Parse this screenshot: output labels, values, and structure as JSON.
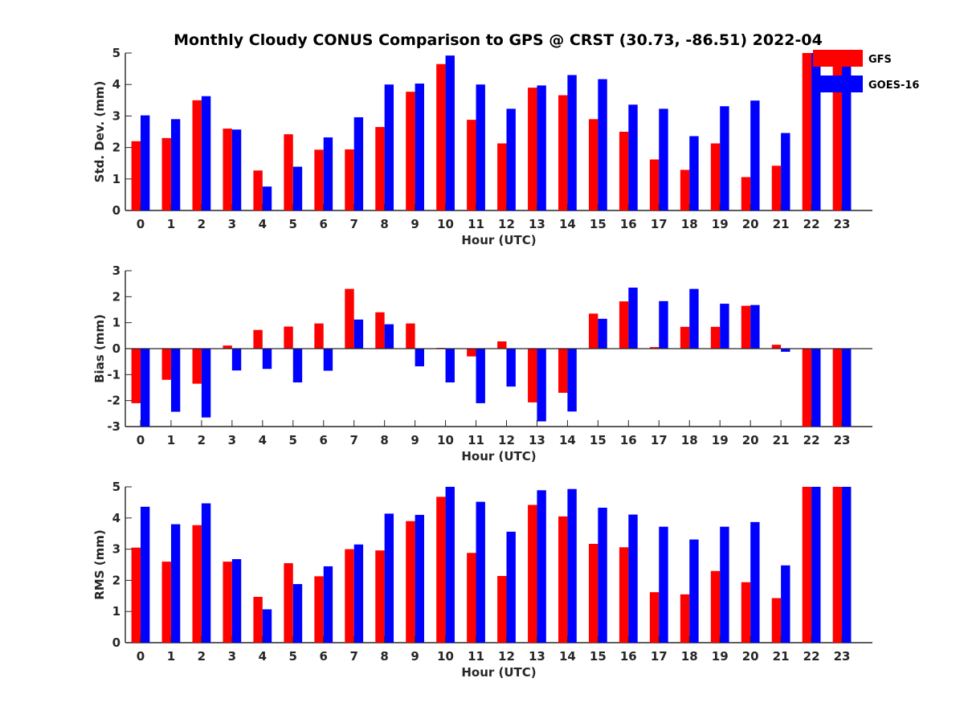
{
  "title": "Monthly Cloudy CONUS Comparison to GPS @ CRST (30.73, -86.51) 2022-04",
  "legend": {
    "items": [
      {
        "label": "GFS",
        "color": "#ff0000"
      },
      {
        "label": "GOES-16",
        "color": "#0000ff"
      }
    ],
    "placement": "top-right"
  },
  "chart_data": [
    {
      "type": "bar",
      "xlabel": "Hour (UTC)",
      "ylabel": "Std. Dev. (mm)",
      "ylim": [
        0,
        5
      ],
      "yticks": [
        0,
        1,
        2,
        3,
        4,
        5
      ],
      "grid": false,
      "categories": [
        "0",
        "1",
        "2",
        "3",
        "4",
        "5",
        "6",
        "7",
        "8",
        "9",
        "10",
        "11",
        "12",
        "13",
        "14",
        "15",
        "16",
        "17",
        "18",
        "19",
        "20",
        "21",
        "22",
        "23"
      ],
      "series": [
        {
          "name": "GFS",
          "color": "#ff0000",
          "values": [
            2.2,
            2.3,
            3.5,
            2.6,
            1.27,
            2.42,
            1.93,
            1.94,
            2.65,
            3.77,
            4.65,
            2.88,
            2.13,
            3.9,
            3.66,
            2.9,
            2.5,
            1.62,
            1.29,
            2.13,
            1.06,
            1.42,
            5.0,
            5.0
          ]
        },
        {
          "name": "GOES-16",
          "color": "#0000ff",
          "values": [
            3.02,
            2.9,
            3.63,
            2.57,
            0.76,
            1.39,
            2.32,
            2.96,
            4.0,
            4.03,
            4.92,
            4.0,
            3.23,
            3.97,
            4.3,
            4.17,
            3.36,
            3.23,
            2.36,
            3.31,
            3.49,
            2.46,
            5.0,
            5.0
          ]
        }
      ]
    },
    {
      "type": "bar",
      "xlabel": "Hour (UTC)",
      "ylabel": "Bias (mm)",
      "ylim": [
        -3,
        3
      ],
      "yticks": [
        -3,
        -2,
        -1,
        0,
        1,
        2,
        3
      ],
      "grid": false,
      "categories": [
        "0",
        "1",
        "2",
        "3",
        "4",
        "5",
        "6",
        "7",
        "8",
        "9",
        "10",
        "11",
        "12",
        "13",
        "14",
        "15",
        "16",
        "17",
        "18",
        "19",
        "20",
        "21",
        "22",
        "23"
      ],
      "series": [
        {
          "name": "GFS",
          "color": "#ff0000",
          "values": [
            -2.1,
            -1.2,
            -1.35,
            0.12,
            0.72,
            0.85,
            0.97,
            2.3,
            1.4,
            0.97,
            0.03,
            -0.3,
            0.28,
            -2.07,
            -1.7,
            1.35,
            1.82,
            0.06,
            0.84,
            0.84,
            1.65,
            0.15,
            -3.0,
            -3.0
          ]
        },
        {
          "name": "GOES-16",
          "color": "#0000ff",
          "values": [
            -3.0,
            -2.43,
            -2.65,
            -0.84,
            -0.78,
            -1.3,
            -0.85,
            1.12,
            0.94,
            -0.68,
            -1.3,
            -2.1,
            -1.46,
            -2.8,
            -2.42,
            1.15,
            2.35,
            1.83,
            2.3,
            1.73,
            1.68,
            -0.12,
            -3.0,
            -3.0
          ]
        }
      ]
    },
    {
      "type": "bar",
      "xlabel": "Hour (UTC)",
      "ylabel": "RMS (mm)",
      "ylim": [
        0,
        5
      ],
      "yticks": [
        0,
        1,
        2,
        3,
        4,
        5
      ],
      "grid": false,
      "categories": [
        "0",
        "1",
        "2",
        "3",
        "4",
        "5",
        "6",
        "7",
        "8",
        "9",
        "10",
        "11",
        "12",
        "13",
        "14",
        "15",
        "16",
        "17",
        "18",
        "19",
        "20",
        "21",
        "22",
        "23"
      ],
      "series": [
        {
          "name": "GFS",
          "color": "#ff0000",
          "values": [
            3.05,
            2.6,
            3.77,
            2.6,
            1.47,
            2.55,
            2.13,
            3.0,
            2.96,
            3.9,
            4.68,
            2.88,
            2.14,
            4.42,
            4.05,
            3.17,
            3.06,
            1.62,
            1.55,
            2.3,
            1.94,
            1.43,
            5.0,
            5.0
          ]
        },
        {
          "name": "GOES-16",
          "color": "#0000ff",
          "values": [
            4.36,
            3.8,
            4.47,
            2.68,
            1.07,
            1.88,
            2.45,
            3.15,
            4.14,
            4.1,
            5.0,
            4.52,
            3.56,
            4.89,
            4.93,
            4.33,
            4.11,
            3.72,
            3.31,
            3.72,
            3.87,
            2.48,
            5.0,
            5.0
          ]
        }
      ]
    }
  ]
}
